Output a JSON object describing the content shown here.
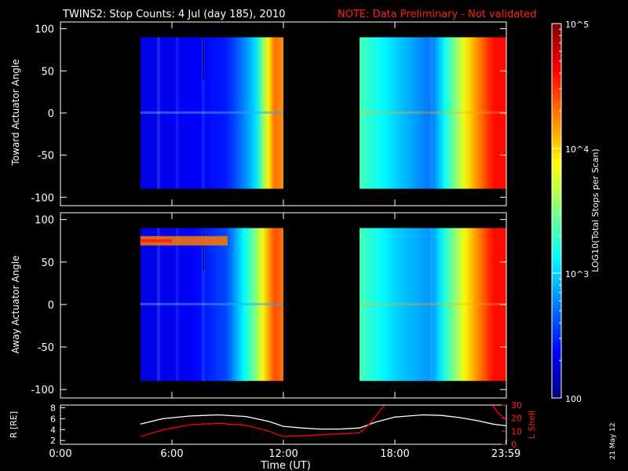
{
  "title": {
    "main": "TWINS2: Stop Counts:  4 Jul (day 185), 2010",
    "note": "NOTE: Data Preliminary - Not validated",
    "note_color": "#ff0000"
  },
  "side_stamp": "21 May 12",
  "colorbar": {
    "label": "LOG10(Total Stops per Scan)",
    "ticks": [
      "10^5",
      "10^4",
      "10^3",
      "100"
    ]
  },
  "chart_data": [
    {
      "type": "heatmap",
      "name": "toward-panel",
      "ylabel": "Toward Actuator Angle",
      "ylim": [
        -110,
        108
      ],
      "yticks": [
        100,
        50,
        0,
        -50,
        -100
      ],
      "xlim_hours": [
        0,
        24
      ],
      "z_scale": "log10, 100 to 100000",
      "data_segments_hours": [
        [
          4.3,
          12.0
        ],
        [
          16.1,
          24.0
        ]
      ],
      "angle_range": [
        -90,
        90
      ],
      "approx_level_profile": [
        {
          "hour": 4.5,
          "log10_counts": 2.3
        },
        {
          "hour": 7.0,
          "log10_counts": 2.35
        },
        {
          "hour": 9.0,
          "log10_counts": 2.45
        },
        {
          "hour": 10.5,
          "log10_counts": 3.0
        },
        {
          "hour": 11.5,
          "log10_counts": 4.3
        },
        {
          "hour": 16.3,
          "log10_counts": 3.3
        },
        {
          "hour": 18.0,
          "log10_counts": 3.0
        },
        {
          "hour": 20.0,
          "log10_counts": 2.7
        },
        {
          "hour": 22.0,
          "log10_counts": 4.0
        },
        {
          "hour": 23.3,
          "log10_counts": 4.6
        }
      ]
    },
    {
      "type": "heatmap",
      "name": "away-panel",
      "ylabel": "Away Actuator Angle",
      "ylim": [
        -110,
        108
      ],
      "yticks": [
        100,
        50,
        0,
        -50,
        -100
      ],
      "xlim_hours": [
        0,
        24
      ],
      "z_scale": "log10, 100 to 100000",
      "data_segments_hours": [
        [
          4.3,
          12.0
        ],
        [
          16.1,
          24.0
        ]
      ],
      "angle_range": [
        -90,
        90
      ],
      "enhanced_band_angle": 75,
      "approx_level_profile": [
        {
          "hour": 4.5,
          "log10_counts": 2.3
        },
        {
          "hour": 7.0,
          "log10_counts": 2.35
        },
        {
          "hour": 9.0,
          "log10_counts": 2.6
        },
        {
          "hour": 10.5,
          "log10_counts": 3.5
        },
        {
          "hour": 11.5,
          "log10_counts": 4.4
        },
        {
          "hour": 16.3,
          "log10_counts": 3.3
        },
        {
          "hour": 18.0,
          "log10_counts": 3.0
        },
        {
          "hour": 20.0,
          "log10_counts": 2.8
        },
        {
          "hour": 22.0,
          "log10_counts": 4.0
        },
        {
          "hour": 23.3,
          "log10_counts": 4.6
        }
      ]
    },
    {
      "type": "line",
      "name": "ephemeris-panel",
      "ylabel_left": "R [RE]",
      "ylabel_right": "L Shell",
      "ylim_left": [
        1.3,
        8.5
      ],
      "yticks_left": [
        2,
        4,
        6,
        8
      ],
      "ylim_right": [
        0,
        30
      ],
      "yticks_right": [
        0,
        10,
        20,
        30
      ],
      "xlabel": "Time (UT)",
      "xticks": [
        {
          "hour": 0,
          "label": "0:00"
        },
        {
          "hour": 6,
          "label": "6:00"
        },
        {
          "hour": 12,
          "label": "12:00"
        },
        {
          "hour": 18,
          "label": "18:00"
        },
        {
          "hour": 23.983,
          "label": "23:59"
        }
      ],
      "series": [
        {
          "axis": "left",
          "color": "#ffffff",
          "x": [
            4.3,
            5.5,
            7,
            8.5,
            10,
            11.2,
            12,
            13,
            14,
            15,
            16.1,
            17,
            18,
            19.5,
            20.5,
            21.5,
            22.5,
            23.3,
            24
          ],
          "y": [
            5.0,
            6.0,
            6.5,
            6.7,
            6.4,
            5.5,
            4.6,
            4.3,
            4.1,
            4.1,
            4.3,
            5.4,
            6.3,
            6.7,
            6.6,
            6.2,
            5.6,
            5.0,
            4.7
          ]
        },
        {
          "axis": "right",
          "color": "#ff0000",
          "x": [
            4.3,
            5.5,
            7,
            8.5,
            10,
            11.2,
            12.0,
            13,
            14,
            15,
            16.1,
            16.6,
            17.1,
            17.5
          ],
          "y": [
            6,
            11,
            15,
            16,
            14.5,
            10,
            6,
            6.5,
            7.3,
            8.0,
            8.7,
            15,
            24,
            31
          ]
        },
        {
          "axis": "right",
          "color": "#ff0000",
          "x": [
            23.2,
            23.5,
            23.8,
            24
          ],
          "y": [
            31,
            25,
            21,
            19
          ]
        }
      ]
    }
  ]
}
